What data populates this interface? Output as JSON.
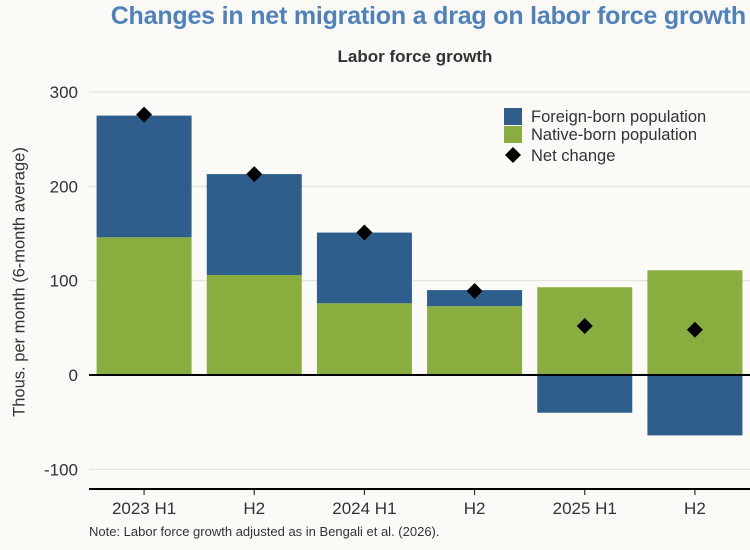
{
  "title": "Changes in net migration a drag on labor force growth",
  "note": "Note: Labor force growth adjusted as in Bengali et al. (2026).",
  "colors": {
    "foreign": "#2e5e8c",
    "native": "#8aad40",
    "net": "#000000",
    "title": "#4f81bd"
  },
  "chart_data": {
    "type": "bar",
    "stacked": true,
    "title": "Labor force growth",
    "xlabel": "",
    "ylabel": "Thous. per month (6-month average)",
    "ylim": [
      -120,
      300
    ],
    "yticks": [
      -100,
      0,
      100,
      200,
      300
    ],
    "grid": true,
    "legend_position": "top-right",
    "categories": [
      "2023 H1",
      "H2",
      "2024 H1",
      "H2",
      "2025 H1",
      "H2"
    ],
    "series": [
      {
        "name": "Native-born population",
        "type": "bar",
        "values": [
          146,
          106,
          76,
          73,
          93,
          111
        ]
      },
      {
        "name": "Foreign-born population",
        "type": "bar",
        "values": [
          129,
          107,
          75,
          17,
          -40,
          -64
        ]
      },
      {
        "name": "Net change",
        "type": "scatter",
        "marker": "diamond",
        "values": [
          276,
          213,
          151,
          89,
          52,
          48
        ]
      }
    ],
    "legend": [
      "Foreign-born population",
      "Native-born population",
      "Net change"
    ]
  }
}
